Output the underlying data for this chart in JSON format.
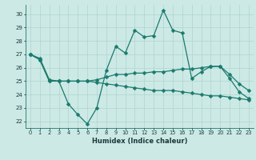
{
  "xlabel": "Humidex (Indice chaleur)",
  "bg_color": "#cce9e5",
  "grid_color": "#aed4ce",
  "line_color": "#1a7a6e",
  "xlim": [
    -0.5,
    23.5
  ],
  "ylim": [
    21.5,
    30.7
  ],
  "yticks": [
    22,
    23,
    24,
    25,
    26,
    27,
    28,
    29,
    30
  ],
  "xticks": [
    0,
    1,
    2,
    3,
    4,
    5,
    6,
    7,
    8,
    9,
    10,
    11,
    12,
    13,
    14,
    15,
    16,
    17,
    18,
    19,
    20,
    21,
    22,
    23
  ],
  "series1": [
    27.0,
    26.6,
    25.0,
    25.0,
    23.3,
    22.5,
    21.8,
    23.0,
    25.8,
    27.6,
    27.1,
    28.8,
    28.3,
    28.4,
    30.3,
    28.8,
    28.6,
    25.2,
    25.7,
    26.1,
    26.1,
    25.2,
    24.2,
    23.7
  ],
  "series2": [
    27.0,
    26.7,
    25.1,
    25.0,
    25.0,
    25.0,
    25.0,
    25.1,
    25.3,
    25.5,
    25.5,
    25.6,
    25.6,
    25.7,
    25.7,
    25.8,
    25.9,
    25.9,
    26.0,
    26.1,
    26.1,
    25.5,
    24.8,
    24.3
  ],
  "series3": [
    27.0,
    26.6,
    25.0,
    25.0,
    25.0,
    25.0,
    25.0,
    24.9,
    24.8,
    24.7,
    24.6,
    24.5,
    24.4,
    24.3,
    24.3,
    24.3,
    24.2,
    24.1,
    24.0,
    23.9,
    23.9,
    23.8,
    23.7,
    23.6
  ]
}
